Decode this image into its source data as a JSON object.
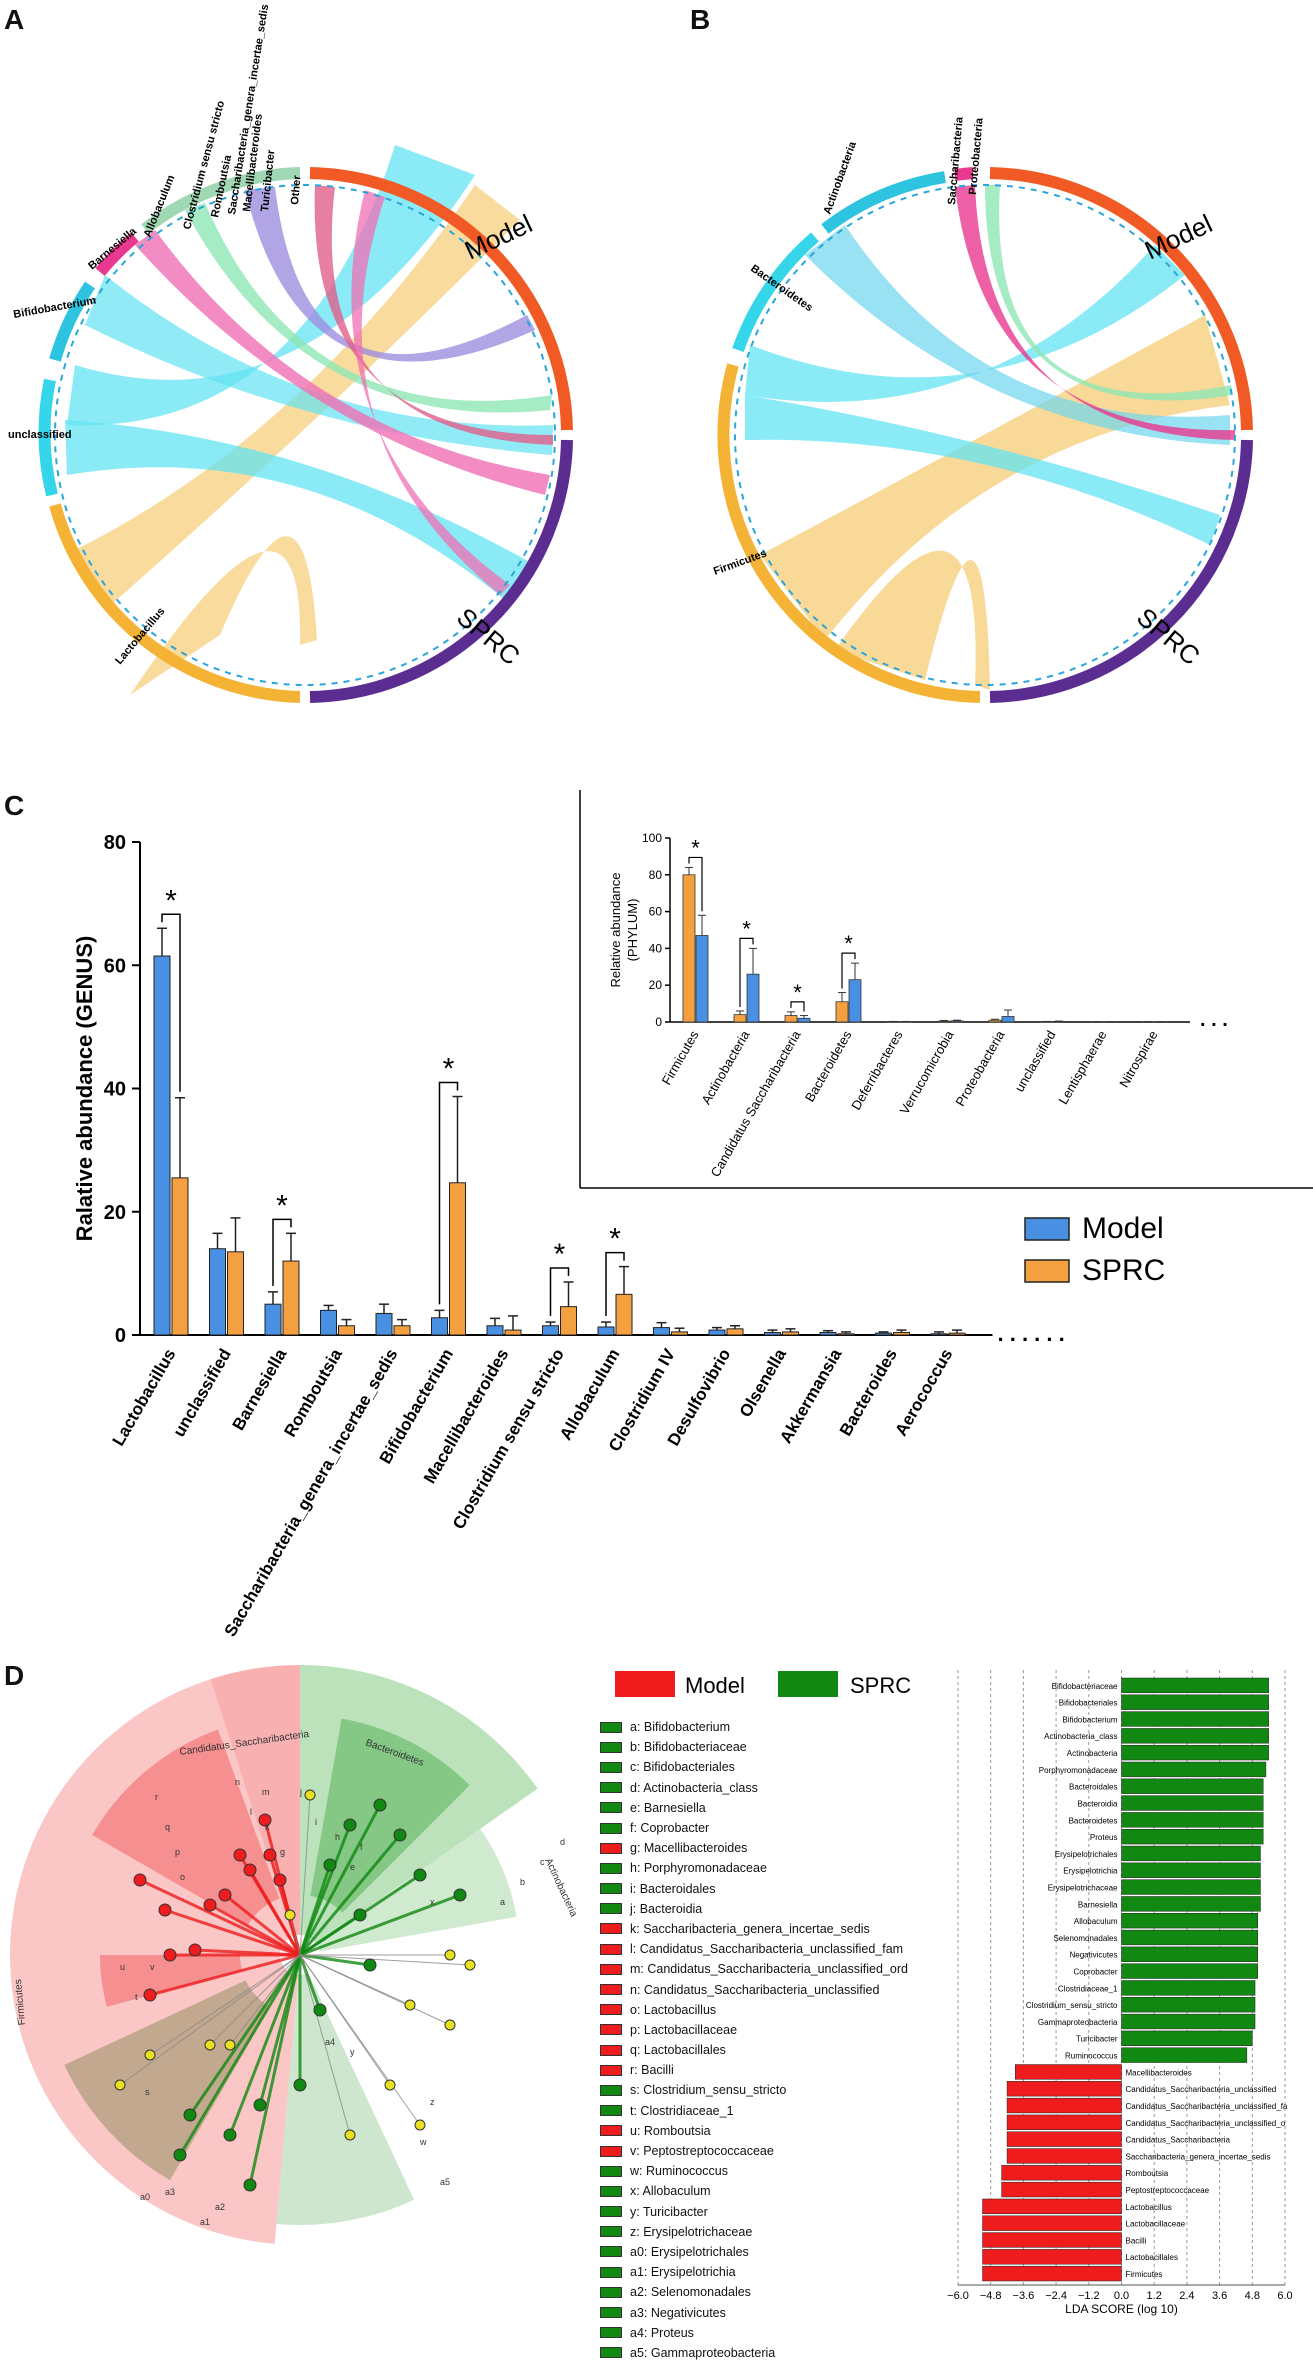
{
  "panels": {
    "A": "A",
    "B": "B",
    "C": "C",
    "D": "D"
  },
  "colors": {
    "model": "#4a90e2",
    "sprc": "#f5a040",
    "lefse_model": "#ee1c1c",
    "lefse_sprc": "#118811"
  },
  "chord_a": {
    "labels": [
      "Lactobacillus",
      "unclassified",
      "Bifidobacterium",
      "Barnesiella",
      "Allobaculum",
      "Clostridium sensu stricto",
      "Romboutsia",
      "Saccharibacteria_genera_incertae_sedis",
      "Macellibacteroides",
      "Turicibacter",
      "Other",
      "Model",
      "SPRC"
    ]
  },
  "chord_b": {
    "labels": [
      "Firmicutes",
      "Bacteroidetes",
      "Actinobacteria",
      "Saccharibacteria",
      "Proteobacteria",
      "Model",
      "SPRC"
    ]
  },
  "chart_data": [
    {
      "type": "bar",
      "title": "",
      "xlabel": "",
      "ylabel": "Ralative  abundance (GENUS)",
      "ylim": [
        0,
        80
      ],
      "yticks": [
        0,
        20,
        40,
        60,
        80
      ],
      "categories": [
        "Lactobacillus",
        "unclassified",
        "Barnesiella",
        "Romboutsia",
        "Saccharibacteria_genera_incertae_sedis",
        "Bifidobacterium",
        "Macellibacteroides",
        "Clostridium sensu stricto",
        "Allobaculum",
        "Clostridium IV",
        "Desulfovibrio",
        "Olsenella",
        "Akkermansia",
        "Bacteroides",
        "Aerococcus"
      ],
      "series": [
        {
          "name": "Model",
          "values": [
            61.5,
            14,
            5,
            4,
            3.5,
            2.8,
            1.5,
            1.5,
            1.3,
            1.2,
            0.8,
            0.4,
            0.4,
            0.3,
            0.2
          ],
          "errors": [
            4.5,
            2.5,
            2,
            0.8,
            1.5,
            1.2,
            1.2,
            0.6,
            0.8,
            0.8,
            0.4,
            0.4,
            0.3,
            0.2,
            0.3
          ]
        },
        {
          "name": "SPRC",
          "values": [
            25.5,
            13.5,
            12,
            1.5,
            1.5,
            24.7,
            0.8,
            4.6,
            6.6,
            0.5,
            1.0,
            0.5,
            0.2,
            0.4,
            0.3
          ],
          "errors": [
            13,
            5.5,
            4.5,
            1,
            1,
            14,
            2.3,
            4,
            4.5,
            0.6,
            0.5,
            0.5,
            0.3,
            0.4,
            0.5
          ]
        }
      ],
      "significant": [
        "Lactobacillus",
        "Barnesiella",
        "Bifidobacterium",
        "Clostridium sensu stricto",
        "Allobaculum"
      ],
      "star": "*",
      "ellipsis": ". . . . . ."
    },
    {
      "type": "bar",
      "title": "",
      "ylabel": "Relative abundance\n(PHYLUM)",
      "ylabel_line1": "Relative abundance",
      "ylabel_line2": "(PHYLUM)",
      "ylim": [
        0,
        100
      ],
      "yticks": [
        0,
        20,
        40,
        60,
        80,
        100
      ],
      "categories": [
        "Firmicutes",
        "Actinobacteria",
        "Candidatus Saccharibacteria",
        "Bacteroidetes",
        "Deferribacteres",
        "Verrucomicrobia",
        "Proteobacteria",
        "unclassified",
        "Lentisphaerae",
        "Nitrospirae"
      ],
      "series": [
        {
          "name": "SPRC",
          "values": [
            80,
            4,
            3.5,
            11,
            0.2,
            0.5,
            1,
            0.2,
            0.1,
            0.1
          ],
          "errors": [
            4,
            2,
            2,
            5,
            0.1,
            0.3,
            0.5,
            0.1,
            0.1,
            0.1
          ]
        },
        {
          "name": "Model",
          "values": [
            47,
            26,
            2,
            23,
            0.2,
            0.6,
            3,
            0.3,
            0.1,
            0.1
          ],
          "errors": [
            11,
            14,
            1.5,
            9,
            0.1,
            0.4,
            3.5,
            0.2,
            0.1,
            0.1
          ]
        }
      ],
      "significant": [
        "Firmicutes",
        "Actinobacteria",
        "Candidatus Saccharibacteria",
        "Bacteroidetes"
      ],
      "star": "*",
      "ellipsis": ". . ."
    },
    {
      "type": "bar",
      "orientation": "horizontal",
      "xlabel": "LDA SCORE (log 10)",
      "xlim": [
        -6.0,
        6.0
      ],
      "xticks": [
        "−6.0",
        "−4.8",
        "−3.6",
        "−2.4",
        "−1.2",
        "0.0",
        "1.2",
        "2.4",
        "3.6",
        "4.8",
        "6.0"
      ],
      "categories": [
        "Bifidobacteriaceae",
        "Bifidobacteriales",
        "Bifidobacterium",
        "Actinobacteria_class",
        "Actinobacteria",
        "Porphyromonadaceae",
        "Bacteroidales",
        "Bacteroidia",
        "Bacteroidetes",
        "Proteus",
        "Erysipelotrichales",
        "Erysipelotrichia",
        "Erysipelotrichaceae",
        "Barnesiella",
        "Allobaculum",
        "Selenomonadales",
        "Negativicutes",
        "Coprobacter",
        "Clostridiaceae_1",
        "Clostridium_sensu_stricto",
        "Gammaproteobacteria",
        "Turicibacter",
        "Ruminococcus",
        "Macellibacteroides",
        "Candidatus_Saccharibacteria_unclassified",
        "Candidatus_Saccharibacteria_unclassified_fa",
        "Candidatus_Saccharibacteria_unclassified_o",
        "Candidatus_Saccharibacteria",
        "Saccharibacteria_genera_incertae_sedis",
        "Romboutsia",
        "Peptostreptococcaceae",
        "Lactobacillus",
        "Lactobacillaceae",
        "Bacilli",
        "Lactobacillales",
        "Firmicutes"
      ],
      "values": [
        5.4,
        5.4,
        5.4,
        5.4,
        5.4,
        5.3,
        5.2,
        5.2,
        5.2,
        5.2,
        5.1,
        5.1,
        5.1,
        5.1,
        5.0,
        5.0,
        5.0,
        5.0,
        4.9,
        4.9,
        4.9,
        4.8,
        4.6,
        -3.9,
        -4.2,
        -4.2,
        -4.2,
        -4.2,
        -4.2,
        -4.4,
        -4.4,
        -5.1,
        -5.1,
        -5.1,
        -5.1,
        -5.1
      ],
      "groups": [
        "SPRC",
        "SPRC",
        "SPRC",
        "SPRC",
        "SPRC",
        "SPRC",
        "SPRC",
        "SPRC",
        "SPRC",
        "SPRC",
        "SPRC",
        "SPRC",
        "SPRC",
        "SPRC",
        "SPRC",
        "SPRC",
        "SPRC",
        "SPRC",
        "SPRC",
        "SPRC",
        "SPRC",
        "SPRC",
        "SPRC",
        "Model",
        "Model",
        "Model",
        "Model",
        "Model",
        "Model",
        "Model",
        "Model",
        "Model",
        "Model",
        "Model",
        "Model",
        "Model"
      ]
    }
  ],
  "legend_c": {
    "model": "Model",
    "sprc": "SPRC"
  },
  "legend_d": {
    "model": "Model",
    "sprc": "SPRC"
  },
  "cladogram": {
    "sectors": [
      "Candidatus_Saccharibacteria",
      "Bacteroidetes",
      "Actinobacteria",
      "Firmicutes"
    ],
    "letters": [
      "n",
      "m",
      "l",
      "k",
      "r",
      "q",
      "p",
      "o",
      "v",
      "u",
      "t",
      "s",
      "a3",
      "a2",
      "a1",
      "a0",
      "j",
      "i",
      "h",
      "f",
      "e",
      "x",
      "a4",
      "y",
      "z",
      "d",
      "c",
      "b",
      "a",
      "a5",
      "w",
      "g"
    ]
  },
  "legend_items": [
    {
      "label": "a: Bifidobacterium",
      "group": "SPRC"
    },
    {
      "label": "b: Bifidobacteriaceae",
      "group": "SPRC"
    },
    {
      "label": "c: Bifidobacteriales",
      "group": "SPRC"
    },
    {
      "label": "d: Actinobacteria_class",
      "group": "SPRC"
    },
    {
      "label": "e: Barnesiella",
      "group": "SPRC"
    },
    {
      "label": "f: Coprobacter",
      "group": "SPRC"
    },
    {
      "label": "g: Macellibacteroides",
      "group": "Model"
    },
    {
      "label": "h: Porphyromonadaceae",
      "group": "SPRC"
    },
    {
      "label": "i: Bacteroidales",
      "group": "SPRC"
    },
    {
      "label": "j: Bacteroidia",
      "group": "SPRC"
    },
    {
      "label": "k: Saccharibacteria_genera_incertae_sedis",
      "group": "Model"
    },
    {
      "label": "l: Candidatus_Saccharibacteria_unclassified_fam",
      "group": "Model"
    },
    {
      "label": "m: Candidatus_Saccharibacteria_unclassified_ord",
      "group": "Model"
    },
    {
      "label": "n: Candidatus_Saccharibacteria_unclassified",
      "group": "Model"
    },
    {
      "label": "o: Lactobacillus",
      "group": "Model"
    },
    {
      "label": "p: Lactobacillaceae",
      "group": "Model"
    },
    {
      "label": "q: Lactobacillales",
      "group": "Model"
    },
    {
      "label": "r: Bacilli",
      "group": "Model"
    },
    {
      "label": "s: Clostridium_sensu_stricto",
      "group": "SPRC"
    },
    {
      "label": "t: Clostridiaceae_1",
      "group": "SPRC"
    },
    {
      "label": "u: Romboutsia",
      "group": "Model"
    },
    {
      "label": "v: Peptostreptococcaceae",
      "group": "Model"
    },
    {
      "label": "w: Ruminococcus",
      "group": "SPRC"
    },
    {
      "label": "x: Allobaculum",
      "group": "SPRC"
    },
    {
      "label": "y: Turicibacter",
      "group": "SPRC"
    },
    {
      "label": "z: Erysipelotrichaceae",
      "group": "SPRC"
    },
    {
      "label": "a0: Erysipelotrichales",
      "group": "SPRC"
    },
    {
      "label": "a1: Erysipelotrichia",
      "group": "SPRC"
    },
    {
      "label": "a2: Selenomonadales",
      "group": "SPRC"
    },
    {
      "label": "a3: Negativicutes",
      "group": "SPRC"
    },
    {
      "label": "a4: Proteus",
      "group": "SPRC"
    },
    {
      "label": "a5: Gammaproteobacteria",
      "group": "SPRC"
    }
  ]
}
